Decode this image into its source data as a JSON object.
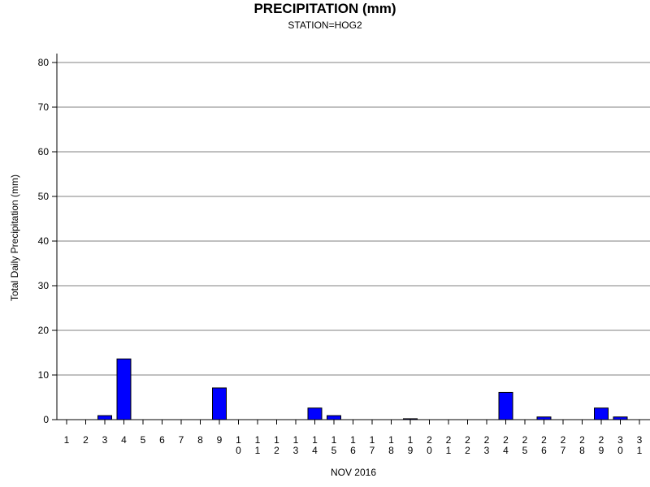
{
  "chart_data": {
    "type": "bar",
    "title": "PRECIPITATION (mm)",
    "subtitle": "STATION=HOG2",
    "ylabel": "Total Daily Precipitation (mm)",
    "xlabel": "NOV 2016",
    "ylim": [
      0,
      80
    ],
    "yticks": [
      0,
      10,
      20,
      30,
      40,
      50,
      60,
      70,
      80
    ],
    "grid": true,
    "categories": [
      "1",
      "2",
      "3",
      "4",
      "5",
      "6",
      "7",
      "8",
      "9",
      "10",
      "11",
      "12",
      "13",
      "14",
      "15",
      "16",
      "17",
      "18",
      "19",
      "20",
      "21",
      "22",
      "23",
      "24",
      "25",
      "26",
      "27",
      "28",
      "29",
      "30",
      "31"
    ],
    "values": [
      0,
      0,
      0.9,
      13.6,
      0,
      0,
      0,
      0,
      7.1,
      0,
      0,
      0,
      0,
      2.6,
      0.9,
      0,
      0,
      0,
      0.2,
      0,
      0,
      0,
      0,
      6.1,
      0,
      0.6,
      0,
      0,
      2.6,
      0.6,
      0
    ],
    "colors": {
      "bar": "#0000ff",
      "bar_outline": "#000000",
      "grid": "#808080",
      "axis": "#000000"
    }
  }
}
